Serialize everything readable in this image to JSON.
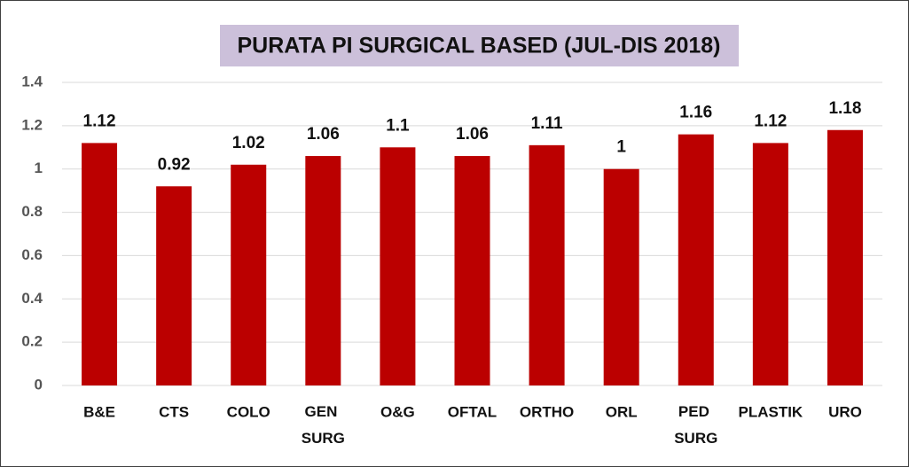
{
  "chart_data": {
    "type": "bar",
    "title": "PURATA PI SURGICAL BASED (JUL-DIS 2018)",
    "categories": [
      "B&E",
      "CTS",
      "COLO",
      "GEN SURG",
      "O&G",
      "OFTAL",
      "ORTHO",
      "ORL",
      "PED SURG",
      "PLASTIK",
      "URO"
    ],
    "values": [
      1.12,
      0.92,
      1.02,
      1.06,
      1.1,
      1.06,
      1.11,
      1,
      1.16,
      1.12,
      1.18
    ],
    "color": "#bb0000",
    "ylim": [
      0,
      1.4
    ],
    "yticks": [
      0,
      0.2,
      0.4,
      0.6,
      0.8,
      1,
      1.2,
      1.4
    ],
    "grid": true
  }
}
